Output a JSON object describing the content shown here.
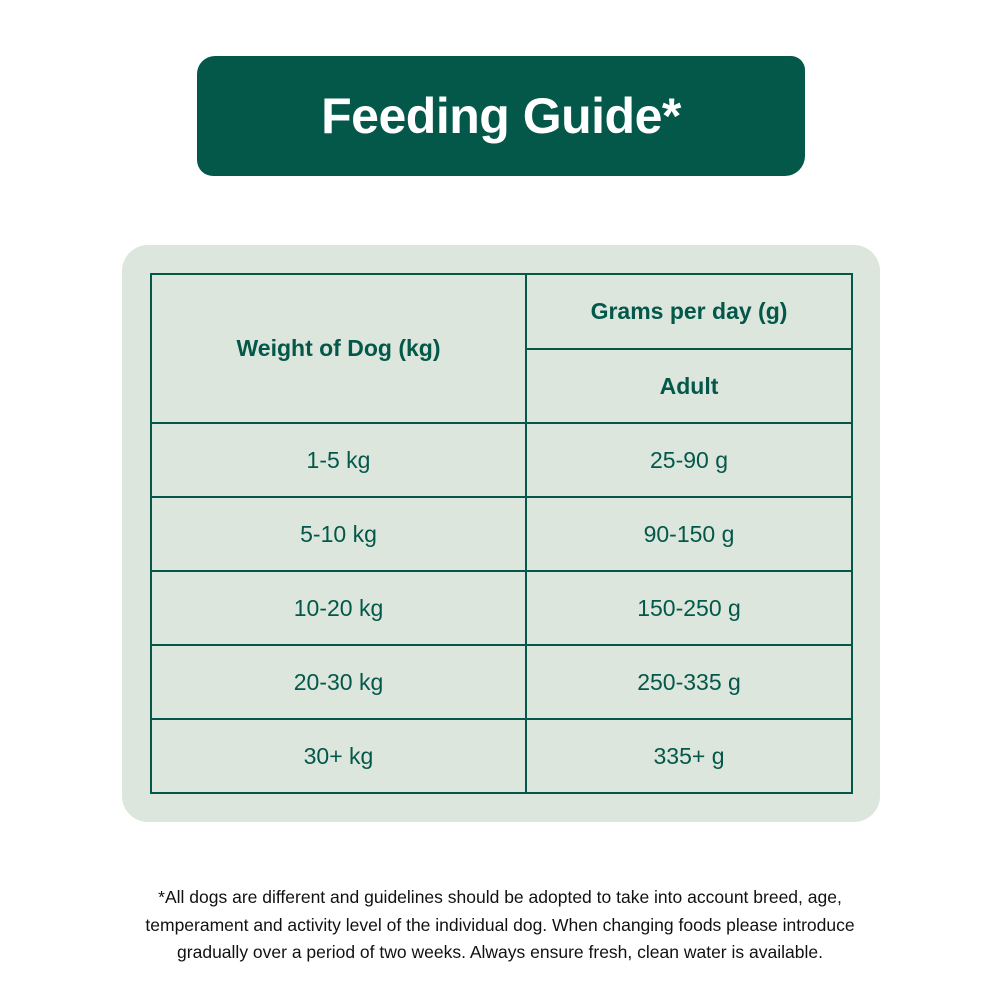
{
  "colors": {
    "dark_green": "#03584a",
    "light_green": "#dce6dd"
  },
  "title": "Feeding Guide*",
  "table": {
    "weight_header": "Weight of Dog (kg)",
    "grams_header": "Grams per day (g)",
    "sub_header": "Adult",
    "rows": [
      {
        "weight": "1-5 kg",
        "grams": "25-90 g"
      },
      {
        "weight": "5-10 kg",
        "grams": "90-150 g"
      },
      {
        "weight": "10-20 kg",
        "grams": "150-250 g"
      },
      {
        "weight": "20-30 kg",
        "grams": "250-335 g"
      },
      {
        "weight": "30+ kg",
        "grams": "335+ g"
      }
    ]
  },
  "footnote": {
    "lines": [
      "*All dogs are different and guidelines should be adopted to take into account breed, age,",
      "temperament and activity level of the individual dog. When changing foods please introduce",
      "gradually over a period of two weeks. Always ensure fresh, clean water is available."
    ]
  }
}
